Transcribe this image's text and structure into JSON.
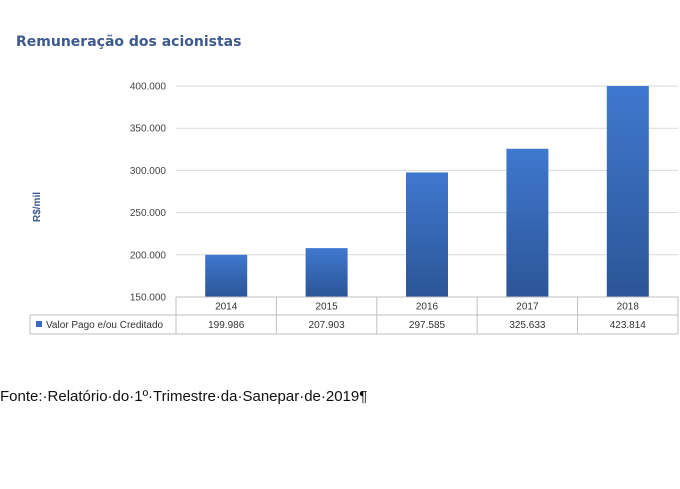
{
  "chart_data": {
    "type": "bar",
    "title": "Remuneração dos acionistas",
    "ylabel": "R$/mil",
    "xlabel": "",
    "categories": [
      "2014",
      "2015",
      "2016",
      "2017",
      "2018"
    ],
    "series": [
      {
        "name": "Valor Pago e/ou Creditado",
        "values": [
          199986,
          207903,
          297585,
          325633,
          423814
        ]
      }
    ],
    "value_labels": [
      "199.986",
      "207.903",
      "297.585",
      "325.633",
      "423.814"
    ],
    "ylim": [
      150000,
      400000
    ],
    "yticks": [
      150000,
      200000,
      250000,
      300000,
      350000,
      400000
    ],
    "ytick_labels": [
      "150.000",
      "200.000",
      "250.000",
      "300.000",
      "350.000",
      "400.000"
    ],
    "grid": true,
    "legend": "data-table",
    "bar_color": "#3a6bbf"
  },
  "caption": "Fonte:·Relatório·do·1º·Trimestre·da·Sanepar·de·2019¶"
}
